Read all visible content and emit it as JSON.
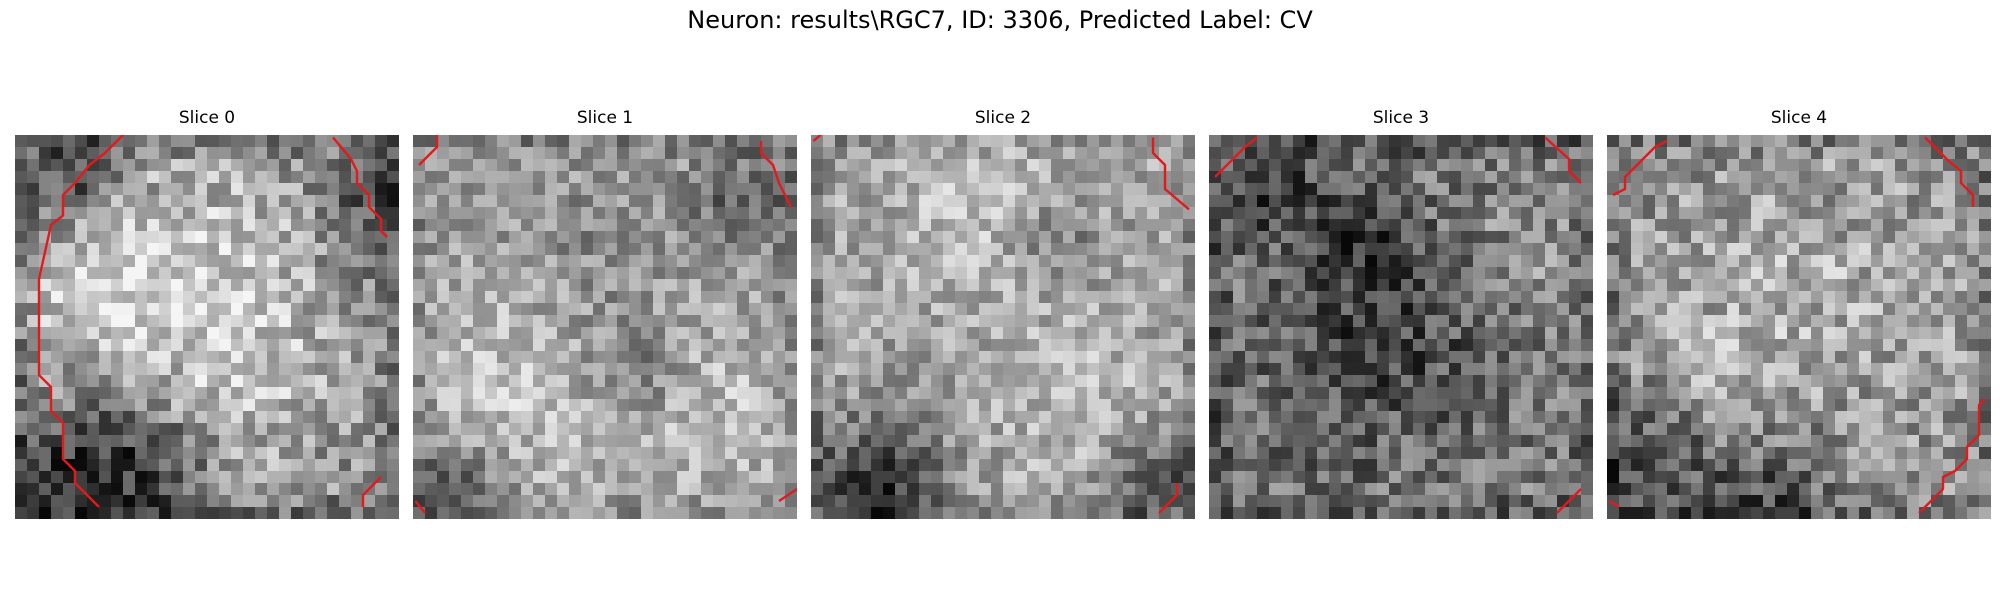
{
  "figure": {
    "title": "Neuron: results\\RGC7, ID: 3306, Predicted Label: CV"
  },
  "panels": [
    {
      "title": "Slice 0"
    },
    {
      "title": "Slice 1"
    },
    {
      "title": "Slice 2"
    },
    {
      "title": "Slice 3"
    },
    {
      "title": "Slice 4"
    }
  ],
  "colors": {
    "contour": "#e31a1c",
    "background": "#ffffff"
  }
}
